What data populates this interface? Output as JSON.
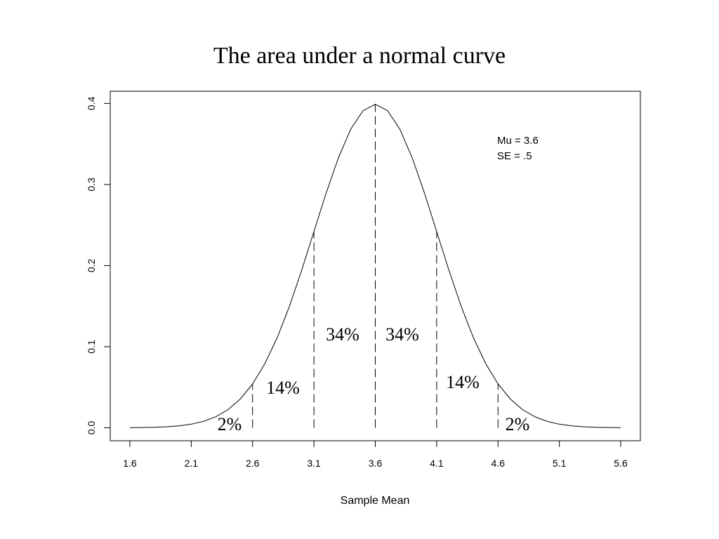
{
  "chart_data": {
    "type": "line",
    "title": "The area under a normal curve",
    "xlabel": "Sample Mean",
    "x": [
      1.6,
      1.7,
      1.8,
      1.9,
      2.0,
      2.1,
      2.2,
      2.3,
      2.4,
      2.5,
      2.6,
      2.7,
      2.8,
      2.9,
      3.0,
      3.1,
      3.2,
      3.3,
      3.4,
      3.5,
      3.6,
      3.7,
      3.8,
      3.9,
      4.0,
      4.1,
      4.2,
      4.3,
      4.4,
      4.5,
      4.6,
      4.7,
      4.8,
      4.9,
      5.0,
      5.1,
      5.2,
      5.3,
      5.4,
      5.5,
      5.6
    ],
    "values": [
      0.0001,
      0.0003,
      0.0006,
      0.0012,
      0.0024,
      0.0044,
      0.0079,
      0.0136,
      0.0224,
      0.0355,
      0.054,
      0.079,
      0.1109,
      0.1497,
      0.1942,
      0.242,
      0.2897,
      0.3332,
      0.3683,
      0.391,
      0.3989,
      0.391,
      0.3683,
      0.3332,
      0.2897,
      0.242,
      0.1942,
      0.1497,
      0.1109,
      0.079,
      0.054,
      0.0355,
      0.0224,
      0.0136,
      0.0079,
      0.0044,
      0.0024,
      0.0012,
      0.0006,
      0.0003,
      0.0001
    ],
    "color": "#000000",
    "vlines": [
      {
        "x": 2.6,
        "y": 0.054
      },
      {
        "x": 3.1,
        "y": 0.242
      },
      {
        "x": 3.6,
        "y": 0.3989
      },
      {
        "x": 4.1,
        "y": 0.242
      },
      {
        "x": 4.6,
        "y": 0.054
      }
    ],
    "annotations": [
      "2%",
      "14%",
      "34%",
      "34%",
      "14%",
      "2%"
    ],
    "legend_text": [
      "Mu = 3.6",
      "SE = .5"
    ],
    "xlim": [
      1.44,
      5.76
    ],
    "ylim": [
      -0.016,
      0.415
    ],
    "xticks": [
      1.6,
      2.1,
      2.6,
      3.1,
      3.6,
      4.1,
      4.6,
      5.1,
      5.6
    ],
    "yticks": [
      {
        "value": 0,
        "label": "0.0"
      },
      0.1,
      0.2,
      0.3,
      0.4
    ]
  }
}
